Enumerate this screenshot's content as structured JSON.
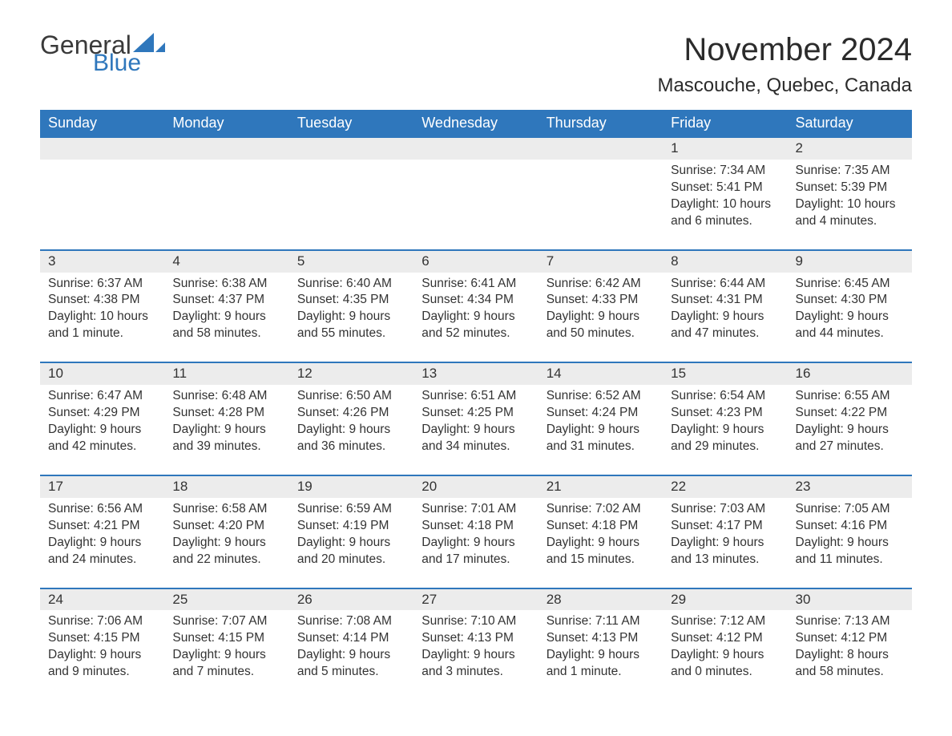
{
  "brand": {
    "general": "General",
    "blue": "Blue",
    "sail_color": "#2f77bc"
  },
  "title": "November 2024",
  "subtitle": "Mascouche, Quebec, Canada",
  "colors": {
    "header_bg": "#2f77bc",
    "header_text": "#ffffff",
    "daynum_bg": "#ececec",
    "row_border": "#2f77bc",
    "body_text": "#333333",
    "page_bg": "#ffffff"
  },
  "typography": {
    "title_fontsize": 40,
    "subtitle_fontsize": 24,
    "header_fontsize": 18,
    "daynum_fontsize": 17,
    "cell_fontsize": 15.5,
    "font_family": "Arial"
  },
  "layout": {
    "columns": 7,
    "weeks": 5
  },
  "day_headers": [
    "Sunday",
    "Monday",
    "Tuesday",
    "Wednesday",
    "Thursday",
    "Friday",
    "Saturday"
  ],
  "weeks": [
    [
      null,
      null,
      null,
      null,
      null,
      {
        "n": "1",
        "sunrise": "Sunrise: 7:34 AM",
        "sunset": "Sunset: 5:41 PM",
        "daylight1": "Daylight: 10 hours",
        "daylight2": "and 6 minutes."
      },
      {
        "n": "2",
        "sunrise": "Sunrise: 7:35 AM",
        "sunset": "Sunset: 5:39 PM",
        "daylight1": "Daylight: 10 hours",
        "daylight2": "and 4 minutes."
      }
    ],
    [
      {
        "n": "3",
        "sunrise": "Sunrise: 6:37 AM",
        "sunset": "Sunset: 4:38 PM",
        "daylight1": "Daylight: 10 hours",
        "daylight2": "and 1 minute."
      },
      {
        "n": "4",
        "sunrise": "Sunrise: 6:38 AM",
        "sunset": "Sunset: 4:37 PM",
        "daylight1": "Daylight: 9 hours",
        "daylight2": "and 58 minutes."
      },
      {
        "n": "5",
        "sunrise": "Sunrise: 6:40 AM",
        "sunset": "Sunset: 4:35 PM",
        "daylight1": "Daylight: 9 hours",
        "daylight2": "and 55 minutes."
      },
      {
        "n": "6",
        "sunrise": "Sunrise: 6:41 AM",
        "sunset": "Sunset: 4:34 PM",
        "daylight1": "Daylight: 9 hours",
        "daylight2": "and 52 minutes."
      },
      {
        "n": "7",
        "sunrise": "Sunrise: 6:42 AM",
        "sunset": "Sunset: 4:33 PM",
        "daylight1": "Daylight: 9 hours",
        "daylight2": "and 50 minutes."
      },
      {
        "n": "8",
        "sunrise": "Sunrise: 6:44 AM",
        "sunset": "Sunset: 4:31 PM",
        "daylight1": "Daylight: 9 hours",
        "daylight2": "and 47 minutes."
      },
      {
        "n": "9",
        "sunrise": "Sunrise: 6:45 AM",
        "sunset": "Sunset: 4:30 PM",
        "daylight1": "Daylight: 9 hours",
        "daylight2": "and 44 minutes."
      }
    ],
    [
      {
        "n": "10",
        "sunrise": "Sunrise: 6:47 AM",
        "sunset": "Sunset: 4:29 PM",
        "daylight1": "Daylight: 9 hours",
        "daylight2": "and 42 minutes."
      },
      {
        "n": "11",
        "sunrise": "Sunrise: 6:48 AM",
        "sunset": "Sunset: 4:28 PM",
        "daylight1": "Daylight: 9 hours",
        "daylight2": "and 39 minutes."
      },
      {
        "n": "12",
        "sunrise": "Sunrise: 6:50 AM",
        "sunset": "Sunset: 4:26 PM",
        "daylight1": "Daylight: 9 hours",
        "daylight2": "and 36 minutes."
      },
      {
        "n": "13",
        "sunrise": "Sunrise: 6:51 AM",
        "sunset": "Sunset: 4:25 PM",
        "daylight1": "Daylight: 9 hours",
        "daylight2": "and 34 minutes."
      },
      {
        "n": "14",
        "sunrise": "Sunrise: 6:52 AM",
        "sunset": "Sunset: 4:24 PM",
        "daylight1": "Daylight: 9 hours",
        "daylight2": "and 31 minutes."
      },
      {
        "n": "15",
        "sunrise": "Sunrise: 6:54 AM",
        "sunset": "Sunset: 4:23 PM",
        "daylight1": "Daylight: 9 hours",
        "daylight2": "and 29 minutes."
      },
      {
        "n": "16",
        "sunrise": "Sunrise: 6:55 AM",
        "sunset": "Sunset: 4:22 PM",
        "daylight1": "Daylight: 9 hours",
        "daylight2": "and 27 minutes."
      }
    ],
    [
      {
        "n": "17",
        "sunrise": "Sunrise: 6:56 AM",
        "sunset": "Sunset: 4:21 PM",
        "daylight1": "Daylight: 9 hours",
        "daylight2": "and 24 minutes."
      },
      {
        "n": "18",
        "sunrise": "Sunrise: 6:58 AM",
        "sunset": "Sunset: 4:20 PM",
        "daylight1": "Daylight: 9 hours",
        "daylight2": "and 22 minutes."
      },
      {
        "n": "19",
        "sunrise": "Sunrise: 6:59 AM",
        "sunset": "Sunset: 4:19 PM",
        "daylight1": "Daylight: 9 hours",
        "daylight2": "and 20 minutes."
      },
      {
        "n": "20",
        "sunrise": "Sunrise: 7:01 AM",
        "sunset": "Sunset: 4:18 PM",
        "daylight1": "Daylight: 9 hours",
        "daylight2": "and 17 minutes."
      },
      {
        "n": "21",
        "sunrise": "Sunrise: 7:02 AM",
        "sunset": "Sunset: 4:18 PM",
        "daylight1": "Daylight: 9 hours",
        "daylight2": "and 15 minutes."
      },
      {
        "n": "22",
        "sunrise": "Sunrise: 7:03 AM",
        "sunset": "Sunset: 4:17 PM",
        "daylight1": "Daylight: 9 hours",
        "daylight2": "and 13 minutes."
      },
      {
        "n": "23",
        "sunrise": "Sunrise: 7:05 AM",
        "sunset": "Sunset: 4:16 PM",
        "daylight1": "Daylight: 9 hours",
        "daylight2": "and 11 minutes."
      }
    ],
    [
      {
        "n": "24",
        "sunrise": "Sunrise: 7:06 AM",
        "sunset": "Sunset: 4:15 PM",
        "daylight1": "Daylight: 9 hours",
        "daylight2": "and 9 minutes."
      },
      {
        "n": "25",
        "sunrise": "Sunrise: 7:07 AM",
        "sunset": "Sunset: 4:15 PM",
        "daylight1": "Daylight: 9 hours",
        "daylight2": "and 7 minutes."
      },
      {
        "n": "26",
        "sunrise": "Sunrise: 7:08 AM",
        "sunset": "Sunset: 4:14 PM",
        "daylight1": "Daylight: 9 hours",
        "daylight2": "and 5 minutes."
      },
      {
        "n": "27",
        "sunrise": "Sunrise: 7:10 AM",
        "sunset": "Sunset: 4:13 PM",
        "daylight1": "Daylight: 9 hours",
        "daylight2": "and 3 minutes."
      },
      {
        "n": "28",
        "sunrise": "Sunrise: 7:11 AM",
        "sunset": "Sunset: 4:13 PM",
        "daylight1": "Daylight: 9 hours",
        "daylight2": "and 1 minute."
      },
      {
        "n": "29",
        "sunrise": "Sunrise: 7:12 AM",
        "sunset": "Sunset: 4:12 PM",
        "daylight1": "Daylight: 9 hours",
        "daylight2": "and 0 minutes."
      },
      {
        "n": "30",
        "sunrise": "Sunrise: 7:13 AM",
        "sunset": "Sunset: 4:12 PM",
        "daylight1": "Daylight: 8 hours",
        "daylight2": "and 58 minutes."
      }
    ]
  ]
}
